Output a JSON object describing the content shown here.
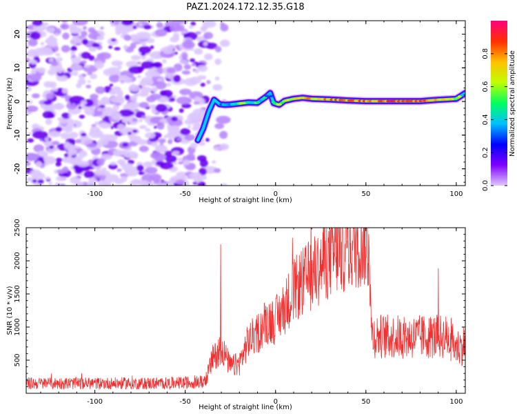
{
  "title": "PAZ1.2024.172.12.35.G18",
  "colors": {
    "snr_line": "#f03030",
    "axis": "#000000"
  },
  "charts": [
    {
      "type": "heatmap",
      "xlabel": "Height of straight line (km)",
      "ylabel": "Frequency (Hz)",
      "xlim": [
        -138,
        105
      ],
      "ylim": [
        -25,
        24
      ],
      "xticks": [
        -100,
        -50,
        0,
        50,
        100
      ],
      "yticks": [
        -20,
        -10,
        0,
        10,
        20
      ],
      "colorbar": {
        "label": "Normalized spectral amplitude",
        "range": [
          0,
          1
        ],
        "ticks": [
          0.0,
          0.2,
          0.4,
          0.6,
          0.8
        ],
        "colors": [
          "#e0c8ff",
          "#7f00ff",
          "#0000ff",
          "#00c0ff",
          "#00ff60",
          "#c0ff00",
          "#ffc000",
          "#ff3000",
          "#ff0080"
        ]
      },
      "ridge": {
        "x": [
          -43,
          -40,
          -37,
          -34,
          -31,
          -28,
          -25,
          -20,
          -15,
          -10,
          -5,
          -3,
          -1,
          2,
          5,
          10,
          15,
          20,
          30,
          40,
          50,
          60,
          70,
          80,
          90,
          100,
          105
        ],
        "y": [
          -11.5,
          -8,
          -3,
          0.5,
          -0.8,
          -1,
          -0.9,
          -0.6,
          -0.3,
          -0.4,
          1.5,
          2.5,
          -0.5,
          -1,
          0.2,
          0.8,
          1.1,
          0.8,
          0.6,
          0.3,
          0.1,
          0.1,
          0.1,
          0.1,
          0.5,
          0.8,
          2.5
        ],
        "amplitude": [
          0.25,
          0.3,
          0.3,
          0.25,
          0.35,
          0.4,
          0.45,
          0.55,
          0.5,
          0.5,
          0.4,
          0.35,
          0.5,
          0.55,
          0.6,
          0.65,
          0.7,
          0.75,
          0.75,
          0.8,
          0.8,
          0.85,
          0.9,
          0.85,
          0.75,
          0.6,
          0.4
        ]
      }
    },
    {
      "type": "line",
      "xlabel": "Height of straight line (km)",
      "ylabel": "SNR (10 * v/v)",
      "xlim": [
        -138,
        105
      ],
      "ylim": [
        0,
        2500
      ],
      "xticks": [
        -100,
        -50,
        0,
        50,
        100
      ],
      "yticks": [
        500,
        1000,
        1500,
        2000,
        2500
      ],
      "series_trend": {
        "x": [
          -138,
          -100,
          -60,
          -40,
          -38,
          -35,
          -30,
          -25,
          -20,
          -15,
          -10,
          -5,
          0,
          5,
          10,
          20,
          30,
          40,
          50,
          52,
          53,
          55,
          60,
          70,
          80,
          90,
          95,
          100,
          103,
          105
        ],
        "y": [
          150,
          150,
          150,
          170,
          250,
          500,
          700,
          400,
          450,
          800,
          900,
          1100,
          1100,
          1300,
          1550,
          1800,
          2050,
          2200,
          2300,
          2330,
          900,
          870,
          860,
          850,
          850,
          860,
          850,
          700,
          700,
          800
        ]
      }
    }
  ]
}
